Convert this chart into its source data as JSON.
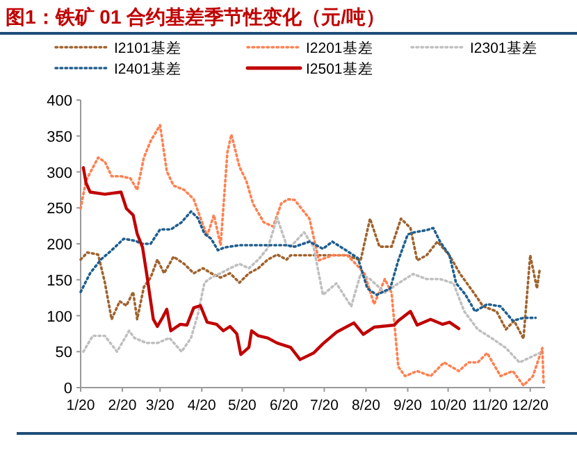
{
  "chart_data": {
    "type": "line",
    "title": "图1：铁矿 01 合约基差季节性变化（元/吨）",
    "xlim": [
      "--01-20",
      "--12-31"
    ],
    "ylim": [
      0,
      400
    ],
    "yticks": [
      0,
      50,
      100,
      150,
      200,
      250,
      300,
      350,
      400
    ],
    "xticks": [
      {
        "value": "--01-20",
        "label": "1/20"
      },
      {
        "value": "--02-20",
        "label": "2/20"
      },
      {
        "value": "--03-20",
        "label": "3/20"
      },
      {
        "value": "--04-20",
        "label": "4/20"
      },
      {
        "value": "--05-20",
        "label": "5/20"
      },
      {
        "value": "--06-20",
        "label": "6/20"
      },
      {
        "value": "--07-20",
        "label": "7/20"
      },
      {
        "value": "--08-20",
        "label": "8/20"
      },
      {
        "value": "--09-20",
        "label": "9/20"
      },
      {
        "value": "--10-20",
        "label": "10/20"
      },
      {
        "value": "--11-20",
        "label": "11/20"
      },
      {
        "value": "--12-20",
        "label": "12/20"
      }
    ],
    "grid": false,
    "legend": "top",
    "series": [
      {
        "name": "I2101基差",
        "color": "#a0622d",
        "line_style": "dotted",
        "x": [
          "--01-20",
          "--01-25",
          "--02-02",
          "--02-07",
          "--02-12",
          "--02-18",
          "--02-23",
          "--02-28",
          "--03-03",
          "--03-08",
          "--03-13",
          "--03-18",
          "--03-23",
          "--03-30",
          "--04-07",
          "--04-14",
          "--04-21",
          "--04-27",
          "--05-04",
          "--05-11",
          "--05-18",
          "--05-25",
          "--06-01",
          "--06-08",
          "--06-15",
          "--06-22",
          "--06-25",
          "--07-05",
          "--07-16",
          "--07-26",
          "--08-06",
          "--08-16",
          "--08-23",
          "--08-30",
          "--09-08",
          "--09-15",
          "--09-22",
          "--09-27",
          "--10-04",
          "--10-12",
          "--10-21",
          "--10-29",
          "--11-08",
          "--11-15",
          "--11-25",
          "--12-02",
          "--12-08",
          "--12-15",
          "--12-20",
          "--12-25",
          "--12-27"
        ],
        "values": [
          178,
          188,
          185,
          146,
          95,
          120,
          114,
          133,
          95,
          140,
          153,
          178,
          159,
          182,
          172,
          159,
          166,
          159,
          153,
          159,
          146,
          159,
          166,
          178,
          185,
          178,
          184,
          184,
          184,
          184,
          184,
          177,
          235,
          196,
          196,
          235,
          222,
          177,
          184,
          203,
          184,
          158,
          132,
          113,
          106,
          81,
          93,
          68,
          184,
          138,
          164
        ]
      },
      {
        "name": "I2201基差",
        "color": "#ff8050",
        "line_style": "dotted",
        "x": [
          "--01-20",
          "--01-24",
          "--02-02",
          "--02-07",
          "--02-12",
          "--02-19",
          "--02-26",
          "--03-03",
          "--03-08",
          "--03-13",
          "--03-20",
          "--03-25",
          "--03-30",
          "--04-07",
          "--04-14",
          "--04-19",
          "--04-24",
          "--04-29",
          "--05-04",
          "--05-09",
          "--05-12",
          "--05-18",
          "--05-23",
          "--05-28",
          "--06-05",
          "--06-12",
          "--06-18",
          "--06-23",
          "--06-28",
          "--07-09",
          "--07-16",
          "--07-26",
          "--08-06",
          "--08-13",
          "--08-19",
          "--08-26",
          "--09-03",
          "--09-08",
          "--09-13",
          "--09-18",
          "--09-27",
          "--10-07",
          "--10-17",
          "--10-28",
          "--11-04",
          "--11-11",
          "--11-18",
          "--11-28",
          "--12-07",
          "--12-15",
          "--12-22",
          "--12-29",
          "--12-30"
        ],
        "values": [
          249,
          288,
          320,
          314,
          294,
          294,
          291,
          275,
          320,
          343,
          365,
          301,
          281,
          275,
          262,
          236,
          211,
          240,
          198,
          327,
          352,
          307,
          288,
          256,
          230,
          224,
          256,
          262,
          261,
          235,
          177,
          184,
          184,
          171,
          158,
          116,
          151,
          132,
          29,
          16,
          23,
          16,
          35,
          23,
          35,
          35,
          48,
          16,
          23,
          3,
          16,
          55,
          3
        ]
      },
      {
        "name": "I2301基差",
        "color": "#bfbfbf",
        "line_style": "dotted",
        "x": [
          "--01-22",
          "--01-29",
          "--02-07",
          "--02-16",
          "--02-25",
          "--03-01",
          "--03-10",
          "--03-18",
          "--03-27",
          "--04-05",
          "--04-12",
          "--04-17",
          "--04-22",
          "--04-27",
          "--05-04",
          "--05-11",
          "--05-18",
          "--05-25",
          "--06-01",
          "--06-08",
          "--06-15",
          "--06-22",
          "--06-25",
          "--07-05",
          "--07-12",
          "--07-19",
          "--07-29",
          "--08-09",
          "--08-16",
          "--08-23",
          "--09-03",
          "--09-13",
          "--09-24",
          "--10-04",
          "--10-14",
          "--10-24",
          "--11-01",
          "--11-11",
          "--11-22",
          "--12-02",
          "--12-12",
          "--12-20",
          "--12-27"
        ],
        "values": [
          50,
          72,
          72,
          50,
          79,
          69,
          62,
          62,
          69,
          50,
          69,
          101,
          146,
          153,
          159,
          166,
          172,
          166,
          178,
          194,
          236,
          198,
          196,
          216,
          196,
          129,
          145,
          113,
          158,
          151,
          132,
          145,
          158,
          151,
          151,
          145,
          106,
          81,
          68,
          55,
          35,
          42,
          48
        ]
      },
      {
        "name": "I2401基差",
        "color": "#1f5f8f",
        "line_style": "dotted",
        "x": [
          "--01-20",
          "--01-27",
          "--02-04",
          "--02-12",
          "--02-21",
          "--03-02",
          "--03-06",
          "--03-13",
          "--03-20",
          "--03-28",
          "--04-05",
          "--04-12",
          "--04-17",
          "--04-22",
          "--04-27",
          "--05-02",
          "--05-07",
          "--05-18",
          "--05-28",
          "--06-08",
          "--06-22",
          "--06-28",
          "--07-09",
          "--07-19",
          "--07-26",
          "--08-06",
          "--08-14",
          "--08-21",
          "--08-28",
          "--09-07",
          "--09-13",
          "--09-20",
          "--09-25",
          "--10-04",
          "--10-09",
          "--10-14",
          "--10-21",
          "--10-26",
          "--11-02",
          "--11-09",
          "--11-18",
          "--11-28",
          "--12-07",
          "--12-15",
          "--12-24"
        ],
        "values": [
          133,
          159,
          178,
          191,
          207,
          204,
          200,
          200,
          220,
          220,
          230,
          245,
          236,
          214,
          207,
          191,
          195,
          198,
          198,
          198,
          198,
          196,
          203,
          193,
          203,
          190,
          180,
          138,
          129,
          138,
          177,
          213,
          216,
          219,
          222,
          203,
          184,
          145,
          129,
          106,
          116,
          113,
          93,
          97,
          97
        ]
      },
      {
        "name": "I2501基差",
        "color": "#c00000",
        "line_style": "solid",
        "x": [
          "--01-22",
          "--01-24",
          "--01-27",
          "--02-07",
          "--02-19",
          "--02-23",
          "--02-28",
          "--03-03",
          "--03-07",
          "--03-10",
          "--03-15",
          "--03-18",
          "--03-22",
          "--03-25",
          "--03-28",
          "--04-04",
          "--04-09",
          "--04-14",
          "--04-19",
          "--04-24",
          "--05-01",
          "--05-06",
          "--05-11",
          "--05-16",
          "--05-19",
          "--05-25",
          "--05-27",
          "--06-01",
          "--06-08",
          "--06-15",
          "--06-25",
          "--07-02",
          "--07-12",
          "--07-19",
          "--07-29",
          "--08-11",
          "--08-18",
          "--08-26",
          "--09-10",
          "--09-13",
          "--09-22",
          "--09-27",
          "--10-07",
          "--10-16",
          "--10-21",
          "--10-28"
        ],
        "values": [
          306,
          285,
          272,
          269,
          272,
          249,
          240,
          214,
          195,
          159,
          95,
          85,
          98,
          109,
          79,
          88,
          87,
          111,
          114,
          91,
          88,
          79,
          85,
          75,
          46,
          56,
          79,
          72,
          69,
          62,
          56,
          39,
          48,
          61,
          77,
          90,
          74,
          84,
          87,
          93,
          106,
          87,
          95,
          88,
          91,
          82
        ]
      }
    ]
  }
}
